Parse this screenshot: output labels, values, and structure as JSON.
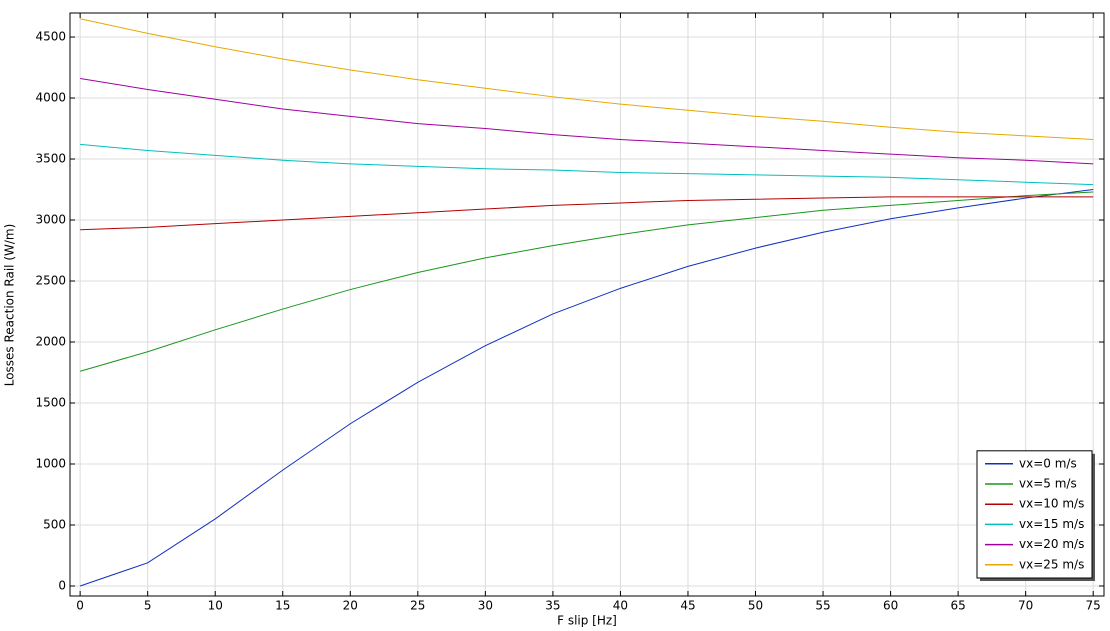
{
  "chart_data": {
    "type": "line",
    "xlabel": "F slip [Hz]",
    "ylabel": "Losses Reaction Rail (W/m)",
    "x": [
      0,
      5,
      10,
      15,
      20,
      25,
      30,
      35,
      40,
      45,
      50,
      55,
      60,
      65,
      70,
      75
    ],
    "series": [
      {
        "name": "vx=0 m/s",
        "color": "#1030c0",
        "values": [
          0,
          190,
          550,
          950,
          1330,
          1670,
          1970,
          2230,
          2440,
          2620,
          2770,
          2900,
          3010,
          3100,
          3180,
          3250
        ]
      },
      {
        "name": "vx=5 m/s",
        "color": "#1a961a",
        "values": [
          1760,
          1920,
          2100,
          2270,
          2430,
          2570,
          2690,
          2790,
          2880,
          2960,
          3020,
          3080,
          3120,
          3160,
          3200,
          3230
        ]
      },
      {
        "name": "vx=10 m/s",
        "color": "#b40000",
        "values": [
          2920,
          2940,
          2970,
          3000,
          3030,
          3060,
          3090,
          3120,
          3140,
          3160,
          3170,
          3180,
          3190,
          3190,
          3190,
          3190
        ]
      },
      {
        "name": "vx=15 m/s",
        "color": "#00bfbf",
        "values": [
          3620,
          3570,
          3530,
          3490,
          3460,
          3440,
          3420,
          3410,
          3390,
          3380,
          3370,
          3360,
          3350,
          3330,
          3310,
          3290
        ]
      },
      {
        "name": "vx=20 m/s",
        "color": "#a000a0",
        "values": [
          4160,
          4070,
          3990,
          3910,
          3850,
          3790,
          3750,
          3700,
          3660,
          3630,
          3600,
          3570,
          3540,
          3510,
          3490,
          3460
        ]
      },
      {
        "name": "vx=25 m/s",
        "color": "#e6a800",
        "values": [
          4650,
          4530,
          4420,
          4320,
          4230,
          4150,
          4080,
          4010,
          3950,
          3900,
          3850,
          3810,
          3760,
          3720,
          3690,
          3660
        ]
      }
    ],
    "xlim": [
      -0.75,
      75.8
    ],
    "ylim": [
      -82,
      4697
    ],
    "xticks": [
      0,
      5,
      10,
      15,
      20,
      25,
      30,
      35,
      40,
      45,
      50,
      55,
      60,
      65,
      70,
      75
    ],
    "yticks": [
      0,
      500,
      1000,
      1500,
      2000,
      2500,
      3000,
      3500,
      4000,
      4500
    ],
    "grid": true,
    "legend": "lower right"
  }
}
